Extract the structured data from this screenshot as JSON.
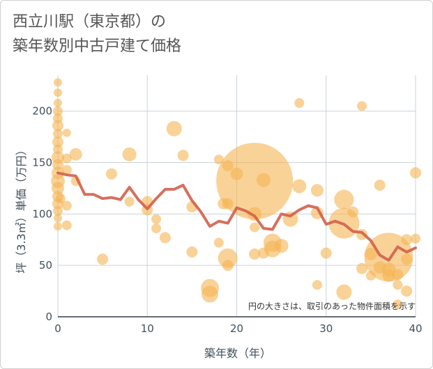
{
  "title_lines": [
    "西立川駅（東京都）の",
    "築年数別中古戸建て価格"
  ],
  "chart_data": {
    "type": "scatter",
    "xlabel": "築年数（年）",
    "ylabel": "坪（3.3㎡）単価（万円）",
    "xlim": [
      0,
      40
    ],
    "ylim": [
      0,
      235
    ],
    "xticks": [
      0,
      10,
      20,
      30,
      40
    ],
    "yticks": [
      0,
      50,
      100,
      150,
      200
    ],
    "grid": true,
    "annotation": "円の大きさは、取引のあった物件面積を示す",
    "colors": {
      "bubble": "#f5b453",
      "line": "#d2614a",
      "grid": "#c9d3dc"
    },
    "points": [
      {
        "x": 0,
        "y": 228,
        "s": 6
      },
      {
        "x": 0,
        "y": 218,
        "s": 6
      },
      {
        "x": 0,
        "y": 208,
        "s": 6
      },
      {
        "x": 0,
        "y": 200,
        "s": 7
      },
      {
        "x": 0,
        "y": 193,
        "s": 7
      },
      {
        "x": 0,
        "y": 186,
        "s": 8
      },
      {
        "x": 0,
        "y": 178,
        "s": 7
      },
      {
        "x": 0,
        "y": 170,
        "s": 8
      },
      {
        "x": 0,
        "y": 163,
        "s": 7
      },
      {
        "x": 0,
        "y": 155,
        "s": 9
      },
      {
        "x": 0,
        "y": 148,
        "s": 8
      },
      {
        "x": 0,
        "y": 140,
        "s": 9
      },
      {
        "x": 0,
        "y": 132,
        "s": 10
      },
      {
        "x": 0,
        "y": 125,
        "s": 9
      },
      {
        "x": 0,
        "y": 117,
        "s": 8
      },
      {
        "x": 0,
        "y": 110,
        "s": 8
      },
      {
        "x": 0,
        "y": 103,
        "s": 7
      },
      {
        "x": 0,
        "y": 96,
        "s": 6
      },
      {
        "x": 0,
        "y": 88,
        "s": 6
      },
      {
        "x": 0.3,
        "y": 115,
        "s": 7
      },
      {
        "x": 1,
        "y": 179,
        "s": 6
      },
      {
        "x": 1,
        "y": 154,
        "s": 7
      },
      {
        "x": 1,
        "y": 143,
        "s": 7
      },
      {
        "x": 1,
        "y": 108,
        "s": 7
      },
      {
        "x": 1,
        "y": 89,
        "s": 7
      },
      {
        "x": 2,
        "y": 158,
        "s": 9
      },
      {
        "x": 2,
        "y": 132,
        "s": 7
      },
      {
        "x": 5,
        "y": 56,
        "s": 8
      },
      {
        "x": 6,
        "y": 139,
        "s": 8
      },
      {
        "x": 8,
        "y": 158,
        "s": 10
      },
      {
        "x": 8,
        "y": 112,
        "s": 7
      },
      {
        "x": 10,
        "y": 104,
        "s": 8
      },
      {
        "x": 10,
        "y": 112,
        "s": 8
      },
      {
        "x": 11,
        "y": 95,
        "s": 7
      },
      {
        "x": 11,
        "y": 86,
        "s": 7
      },
      {
        "x": 12,
        "y": 77,
        "s": 8
      },
      {
        "x": 13,
        "y": 183,
        "s": 11
      },
      {
        "x": 14,
        "y": 157,
        "s": 8
      },
      {
        "x": 15,
        "y": 107,
        "s": 8
      },
      {
        "x": 15,
        "y": 63,
        "s": 8
      },
      {
        "x": 17,
        "y": 28,
        "s": 13
      },
      {
        "x": 17,
        "y": 22,
        "s": 12
      },
      {
        "x": 18,
        "y": 153,
        "s": 7
      },
      {
        "x": 18,
        "y": 72,
        "s": 7
      },
      {
        "x": 19,
        "y": 147,
        "s": 8
      },
      {
        "x": 19,
        "y": 57,
        "s": 14
      },
      {
        "x": 19,
        "y": 50,
        "s": 8
      },
      {
        "x": 20,
        "y": 139,
        "s": 9
      },
      {
        "x": 18.5,
        "y": 110,
        "s": 8
      },
      {
        "x": 19,
        "y": 110,
        "s": 8
      },
      {
        "x": 22,
        "y": 132,
        "s": 55
      },
      {
        "x": 22,
        "y": 100,
        "s": 10
      },
      {
        "x": 22,
        "y": 87,
        "s": 7
      },
      {
        "x": 22,
        "y": 61,
        "s": 8
      },
      {
        "x": 23,
        "y": 133,
        "s": 10
      },
      {
        "x": 23,
        "y": 62,
        "s": 8
      },
      {
        "x": 24,
        "y": 72,
        "s": 13
      },
      {
        "x": 24,
        "y": 66,
        "s": 12
      },
      {
        "x": 25,
        "y": 69,
        "s": 10
      },
      {
        "x": 26,
        "y": 95,
        "s": 11
      },
      {
        "x": 27,
        "y": 208,
        "s": 7
      },
      {
        "x": 27,
        "y": 127,
        "s": 10
      },
      {
        "x": 29,
        "y": 123,
        "s": 9
      },
      {
        "x": 29,
        "y": 101,
        "s": 9
      },
      {
        "x": 29,
        "y": 31,
        "s": 7
      },
      {
        "x": 30,
        "y": 62,
        "s": 8
      },
      {
        "x": 32,
        "y": 114,
        "s": 14
      },
      {
        "x": 32,
        "y": 91,
        "s": 22
      },
      {
        "x": 32,
        "y": 24,
        "s": 11
      },
      {
        "x": 33,
        "y": 102,
        "s": 8
      },
      {
        "x": 34,
        "y": 205,
        "s": 7
      },
      {
        "x": 34,
        "y": 80,
        "s": 8
      },
      {
        "x": 34,
        "y": 47,
        "s": 8
      },
      {
        "x": 35,
        "y": 61,
        "s": 9
      },
      {
        "x": 35,
        "y": 40,
        "s": 7
      },
      {
        "x": 36,
        "y": 128,
        "s": 8
      },
      {
        "x": 36,
        "y": 48,
        "s": 9
      },
      {
        "x": 37,
        "y": 58,
        "s": 35
      },
      {
        "x": 37,
        "y": 46,
        "s": 10
      },
      {
        "x": 37,
        "y": 40,
        "s": 9
      },
      {
        "x": 38,
        "y": 31,
        "s": 7
      },
      {
        "x": 38,
        "y": 41,
        "s": 8
      },
      {
        "x": 39,
        "y": 75,
        "s": 8
      },
      {
        "x": 39,
        "y": 56,
        "s": 8
      },
      {
        "x": 39,
        "y": 25,
        "s": 8
      },
      {
        "x": 40,
        "y": 140,
        "s": 8
      },
      {
        "x": 40,
        "y": 76,
        "s": 7
      },
      {
        "x": 38,
        "y": 12,
        "s": 7
      }
    ],
    "trend": {
      "x": [
        0,
        1,
        2,
        3,
        4,
        5,
        6,
        7,
        8,
        9,
        10,
        11,
        12,
        13,
        14,
        15,
        16,
        17,
        18,
        19,
        20,
        21,
        22,
        23,
        24,
        25,
        26,
        27,
        28,
        29,
        30,
        31,
        32,
        33,
        34,
        35,
        36,
        37,
        38,
        39,
        40
      ],
      "y": [
        140,
        138,
        137,
        119,
        119,
        115,
        116,
        114,
        126,
        114,
        105,
        115,
        124,
        124,
        128,
        113,
        102,
        88,
        93,
        91,
        106,
        103,
        98,
        86,
        85,
        100,
        98,
        104,
        108,
        106,
        90,
        93,
        90,
        83,
        82,
        74,
        60,
        55,
        68,
        63,
        67
      ]
    }
  }
}
